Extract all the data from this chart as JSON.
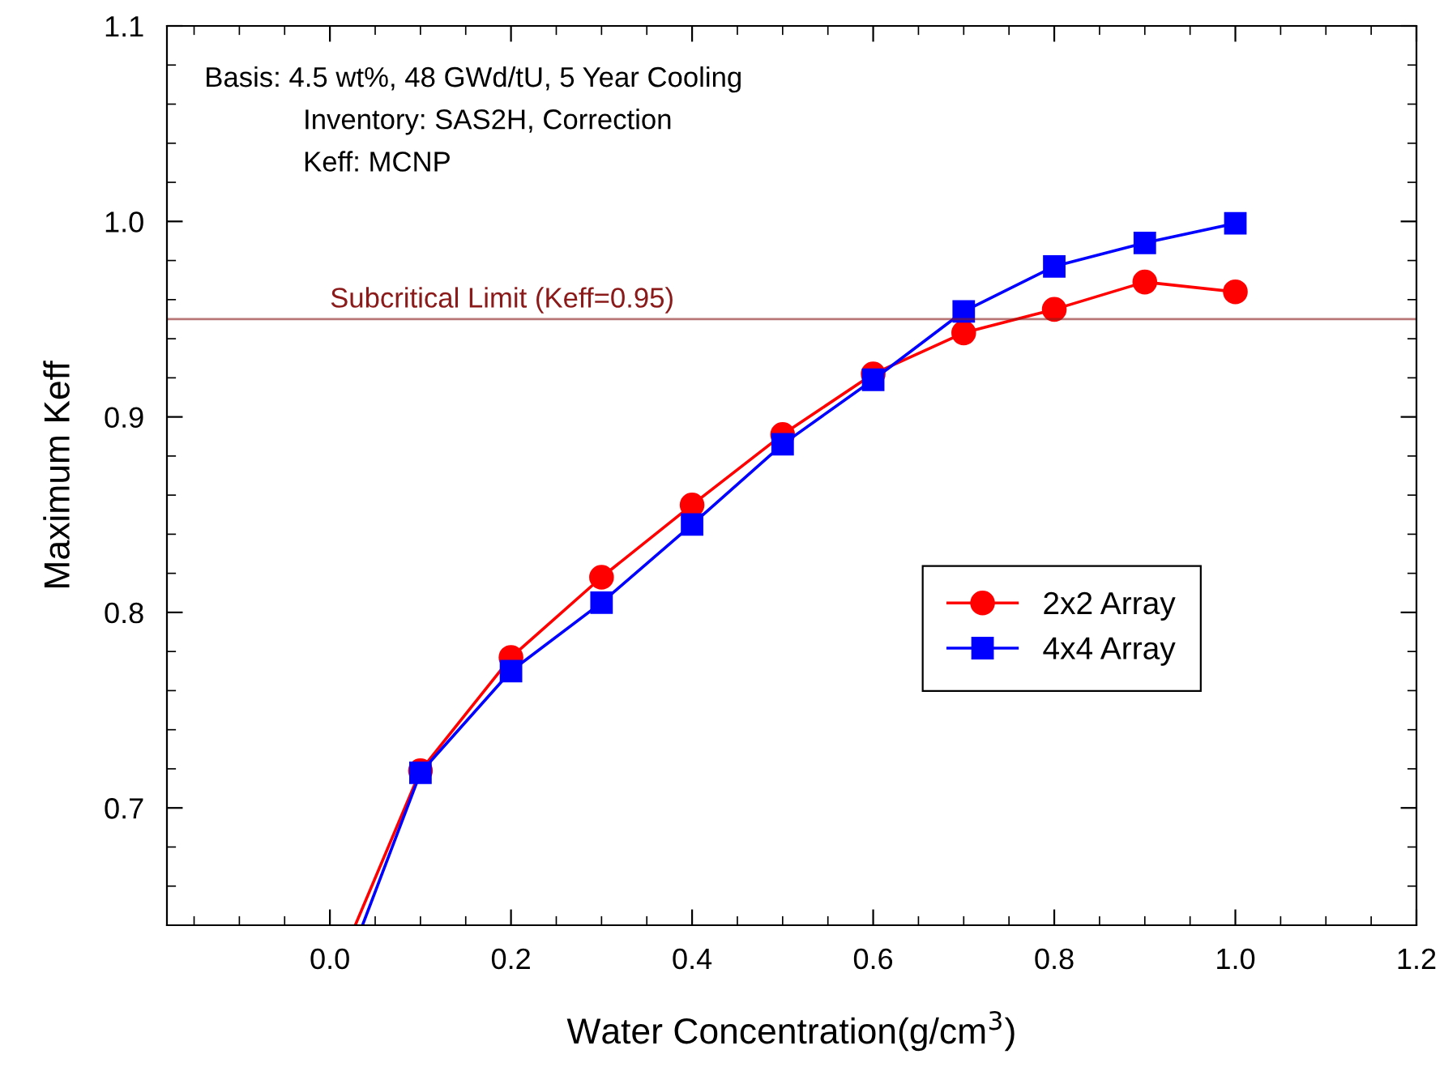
{
  "chart_data": {
    "type": "line",
    "xlabel": "Water Concentration(g/cm$^{3}$)",
    "ylabel": "Maximum Keff",
    "series": [
      {
        "name": "2x2 Array",
        "color": "#ff0000",
        "marker": "circle",
        "x": [
          0.028,
          0.1,
          0.2,
          0.3,
          0.4,
          0.5,
          0.6,
          0.7,
          0.8,
          0.9,
          1.0
        ],
        "values": [
          0.64,
          0.719,
          0.777,
          0.818,
          0.855,
          0.891,
          0.922,
          0.943,
          0.955,
          0.969,
          0.964
        ]
      },
      {
        "name": "4x4 Array",
        "color": "#0000ff",
        "marker": "square",
        "x": [
          0.036,
          0.1,
          0.2,
          0.3,
          0.4,
          0.5,
          0.6,
          0.7,
          0.8,
          0.9,
          1.0
        ],
        "values": [
          0.64,
          0.718,
          0.77,
          0.805,
          0.845,
          0.886,
          0.919,
          0.954,
          0.977,
          0.989,
          0.999
        ]
      }
    ],
    "xlim": [
      -0.18,
      1.2
    ],
    "xticks": [
      {
        "value": 0.0,
        "label": "0.0"
      },
      0.2,
      0.4,
      0.6,
      0.8,
      {
        "value": 1.0,
        "label": "1.0"
      },
      1.2
    ],
    "ylim": [
      0.64,
      1.1
    ],
    "yticks": [
      0.7,
      0.8,
      0.9,
      {
        "value": 1.0,
        "label": "1.0"
      },
      1.1
    ],
    "ref_lines": [
      {
        "axis": "y",
        "value": 0.95,
        "label": "Subcritical Limit (Keff=0.95)",
        "color": "#8b1a1a"
      }
    ],
    "annotations": [
      "Basis: 4.5 wt%, 48 GWd/tU, 5 Year Cooling",
      "Inventory: SAS2H, Correction",
      "Keff: MCNP"
    ],
    "legend": "right",
    "grid": false,
    "line_style": "solid"
  }
}
